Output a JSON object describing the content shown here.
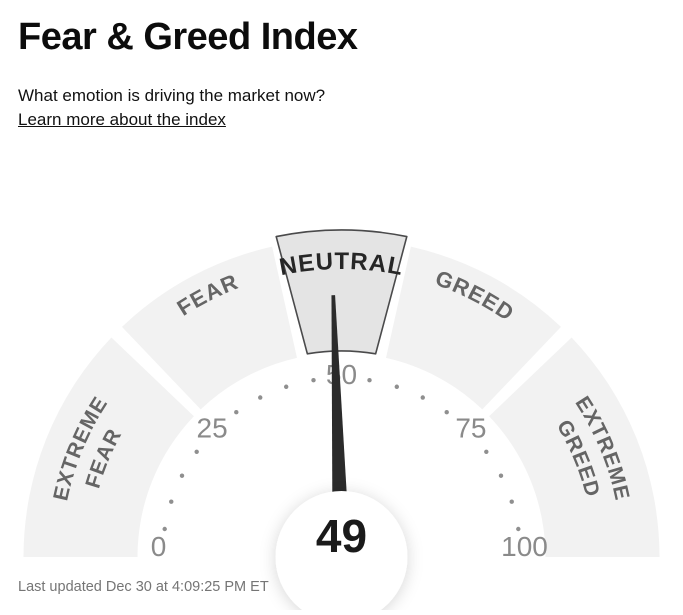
{
  "header": {
    "title": "Fear & Greed Index",
    "subtitle": "What emotion is driving the market now?",
    "link_label": "Learn more about the index"
  },
  "footer": {
    "last_updated": "Last updated Dec 30 at 4:09:25 PM ET"
  },
  "chart_data": {
    "type": "gauge",
    "title": "Fear & Greed Index",
    "value": 49,
    "value_label": "49",
    "min": 0,
    "max": 100,
    "current_zone": "Neutral",
    "segments": [
      {
        "label": "EXTREME FEAR",
        "lines": [
          "EXTREME",
          "FEAR"
        ],
        "start": 0,
        "end": 25,
        "highlighted": false
      },
      {
        "label": "FEAR",
        "lines": [
          "FEAR"
        ],
        "start": 25,
        "end": 45,
        "highlighted": false
      },
      {
        "label": "NEUTRAL",
        "lines": [
          "NEUTRAL"
        ],
        "start": 45,
        "end": 55,
        "highlighted": true
      },
      {
        "label": "GREED",
        "lines": [
          "GREED"
        ],
        "start": 55,
        "end": 75,
        "highlighted": false
      },
      {
        "label": "EXTREME GREED",
        "lines": [
          "EXTREME",
          "GREED"
        ],
        "start": 75,
        "end": 100,
        "highlighted": false
      }
    ],
    "axis_ticks": [
      0,
      25,
      50,
      75,
      100
    ],
    "dot_values": [
      5,
      10,
      15,
      20,
      30,
      35,
      40,
      45,
      55,
      60,
      65,
      70,
      80,
      85,
      90,
      95
    ],
    "layout_hints": {
      "shape": "semicircle",
      "needle": true,
      "legend": "none"
    },
    "colors": {
      "segment_fill": "#f2f2f2",
      "highlight_fill": "#e4e4e4",
      "highlight_border": "#4a4a4b",
      "segment_label": "#656565",
      "highlight_label": "#262626",
      "tick_label": "#8a8a8a",
      "dot": "#8f8f8f",
      "needle": "#2b2b2b",
      "value_text": "#1a1a1a"
    }
  }
}
